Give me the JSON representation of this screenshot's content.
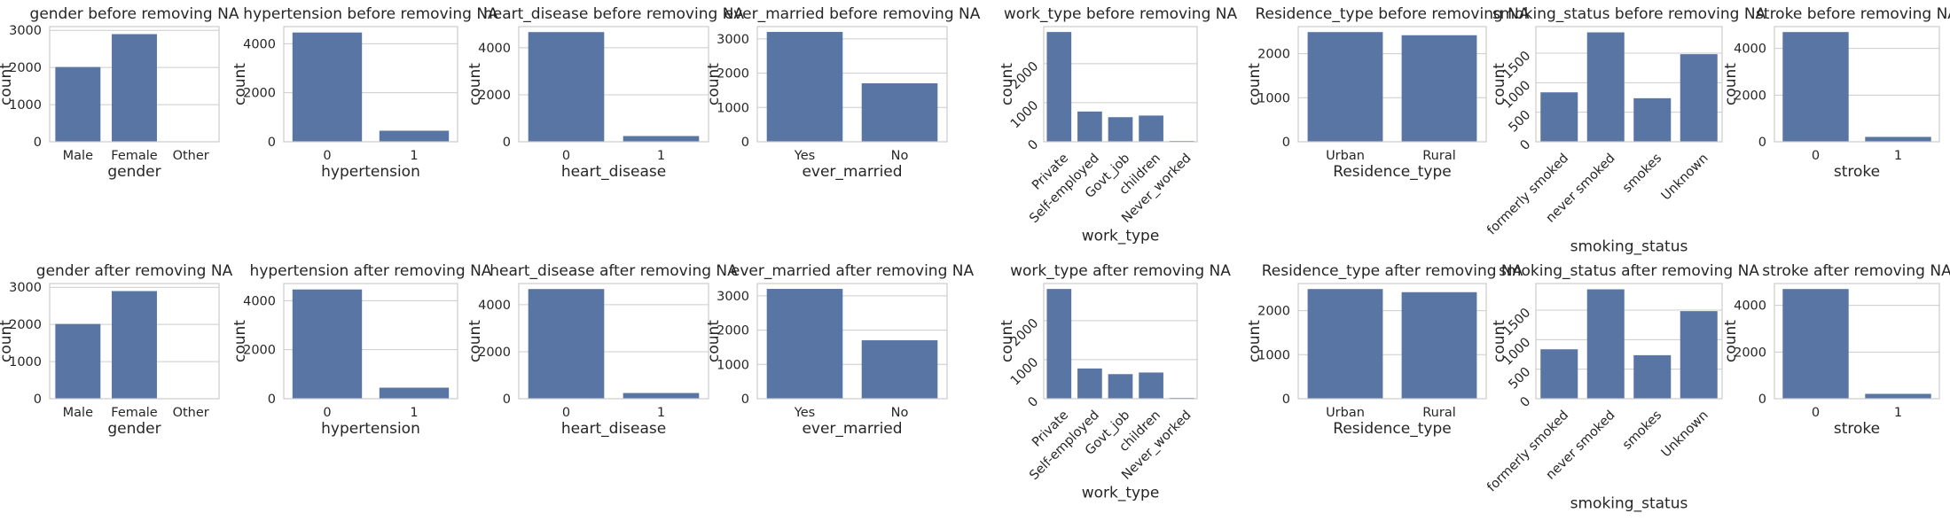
{
  "chart_data": [
    {
      "type": "bar",
      "title": "gender before removing NA",
      "xlabel": "gender",
      "ylabel": "count",
      "categories": [
        "Male",
        "Female",
        "Other"
      ],
      "values": [
        2011,
        2897,
        1
      ],
      "ylim": [
        0,
        3100
      ],
      "yticks": [
        0,
        1000,
        2000,
        3000
      ],
      "rotate_x": false,
      "rotate_y": false,
      "grid": true
    },
    {
      "type": "bar",
      "title": "hypertension before removing NA",
      "xlabel": "hypertension",
      "ylabel": "count",
      "categories": [
        "0",
        "1"
      ],
      "values": [
        4458,
        451
      ],
      "ylim": [
        0,
        4700
      ],
      "yticks": [
        0,
        2000,
        4000
      ],
      "rotate_x": false,
      "rotate_y": false,
      "grid": true
    },
    {
      "type": "bar",
      "title": "heart_disease before removing NA",
      "xlabel": "heart_disease",
      "ylabel": "count",
      "categories": [
        "0",
        "1"
      ],
      "values": [
        4666,
        243
      ],
      "ylim": [
        0,
        4900
      ],
      "yticks": [
        0,
        2000,
        4000
      ],
      "rotate_x": false,
      "rotate_y": false,
      "grid": true
    },
    {
      "type": "bar",
      "title": "ever_married before removing NA",
      "xlabel": "ever_married",
      "ylabel": "count",
      "categories": [
        "Yes",
        "No"
      ],
      "values": [
        3204,
        1705
      ],
      "ylim": [
        0,
        3360
      ],
      "yticks": [
        0,
        1000,
        2000,
        3000
      ],
      "rotate_x": false,
      "rotate_y": false,
      "grid": true
    },
    {
      "type": "bar",
      "title": "work_type before removing NA",
      "xlabel": "work_type",
      "ylabel": "count",
      "categories": [
        "Private",
        "Self-employed",
        "Govt_job",
        "children",
        "Never_worked"
      ],
      "values": [
        2811,
        775,
        630,
        671,
        22
      ],
      "ylim": [
        0,
        2950
      ],
      "yticks": [
        0,
        1000,
        2000
      ],
      "rotate_x": true,
      "rotate_y": true,
      "grid": true
    },
    {
      "type": "bar",
      "title": "Residence_type before removing NA",
      "xlabel": "Residence_type",
      "ylabel": "count",
      "categories": [
        "Urban",
        "Rural"
      ],
      "values": [
        2490,
        2419
      ],
      "ylim": [
        0,
        2615
      ],
      "yticks": [
        0,
        1000,
        2000
      ],
      "rotate_x": false,
      "rotate_y": false,
      "grid": true
    },
    {
      "type": "bar",
      "title": "smoking_status before removing NA",
      "xlabel": "smoking_status",
      "ylabel": "count",
      "categories": [
        "formerly smoked",
        "never smoked",
        "smokes",
        "Unknown"
      ],
      "values": [
        837,
        1852,
        737,
        1483
      ],
      "ylim": [
        0,
        1950
      ],
      "yticks": [
        0,
        500,
        1000,
        1500
      ],
      "rotate_x": true,
      "rotate_y": true,
      "grid": true
    },
    {
      "type": "bar",
      "title": "stroke before removing NA",
      "xlabel": "stroke",
      "ylabel": "count",
      "categories": [
        "0",
        "1"
      ],
      "values": [
        4700,
        209
      ],
      "ylim": [
        0,
        4935
      ],
      "yticks": [
        0,
        2000,
        4000
      ],
      "rotate_x": false,
      "rotate_y": false,
      "grid": true
    },
    {
      "type": "bar",
      "title": "gender after removing NA",
      "xlabel": "gender",
      "ylabel": "count",
      "categories": [
        "Male",
        "Female",
        "Other"
      ],
      "values": [
        2011,
        2897,
        1
      ],
      "ylim": [
        0,
        3100
      ],
      "yticks": [
        0,
        1000,
        2000,
        3000
      ],
      "rotate_x": false,
      "rotate_y": false,
      "grid": true
    },
    {
      "type": "bar",
      "title": "hypertension after removing NA",
      "xlabel": "hypertension",
      "ylabel": "count",
      "categories": [
        "0",
        "1"
      ],
      "values": [
        4458,
        451
      ],
      "ylim": [
        0,
        4700
      ],
      "yticks": [
        0,
        2000,
        4000
      ],
      "rotate_x": false,
      "rotate_y": false,
      "grid": true
    },
    {
      "type": "bar",
      "title": "heart_disease after removing NA",
      "xlabel": "heart_disease",
      "ylabel": "count",
      "categories": [
        "0",
        "1"
      ],
      "values": [
        4666,
        243
      ],
      "ylim": [
        0,
        4900
      ],
      "yticks": [
        0,
        2000,
        4000
      ],
      "rotate_x": false,
      "rotate_y": false,
      "grid": true
    },
    {
      "type": "bar",
      "title": "ever_married after removing NA",
      "xlabel": "ever_married",
      "ylabel": "count",
      "categories": [
        "Yes",
        "No"
      ],
      "values": [
        3204,
        1705
      ],
      "ylim": [
        0,
        3360
      ],
      "yticks": [
        0,
        1000,
        2000,
        3000
      ],
      "rotate_x": false,
      "rotate_y": false,
      "grid": true
    },
    {
      "type": "bar",
      "title": "work_type after removing NA",
      "xlabel": "work_type",
      "ylabel": "count",
      "categories": [
        "Private",
        "Self-employed",
        "Govt_job",
        "children",
        "Never_worked"
      ],
      "values": [
        2811,
        775,
        630,
        671,
        22
      ],
      "ylim": [
        0,
        2950
      ],
      "yticks": [
        0,
        1000,
        2000
      ],
      "rotate_x": true,
      "rotate_y": true,
      "grid": true
    },
    {
      "type": "bar",
      "title": "Residence_type after removing NA",
      "xlabel": "Residence_type",
      "ylabel": "count",
      "categories": [
        "Urban",
        "Rural"
      ],
      "values": [
        2490,
        2419
      ],
      "ylim": [
        0,
        2615
      ],
      "yticks": [
        0,
        1000,
        2000
      ],
      "rotate_x": false,
      "rotate_y": false,
      "grid": true
    },
    {
      "type": "bar",
      "title": "smoking_status after removing NA",
      "xlabel": "smoking_status",
      "ylabel": "count",
      "categories": [
        "formerly smoked",
        "never smoked",
        "smokes",
        "Unknown"
      ],
      "values": [
        837,
        1852,
        737,
        1483
      ],
      "ylim": [
        0,
        1950
      ],
      "yticks": [
        0,
        500,
        1000,
        1500
      ],
      "rotate_x": true,
      "rotate_y": true,
      "grid": true
    },
    {
      "type": "bar",
      "title": "stroke after removing NA",
      "xlabel": "stroke",
      "ylabel": "count",
      "categories": [
        "0",
        "1"
      ],
      "values": [
        4700,
        209
      ],
      "ylim": [
        0,
        4935
      ],
      "yticks": [
        0,
        2000,
        4000
      ],
      "rotate_x": false,
      "rotate_y": false,
      "grid": true
    }
  ],
  "colors": {
    "bar": "#5975a4",
    "grid": "#cccccc",
    "text": "#262626",
    "background": "#ffffff"
  }
}
